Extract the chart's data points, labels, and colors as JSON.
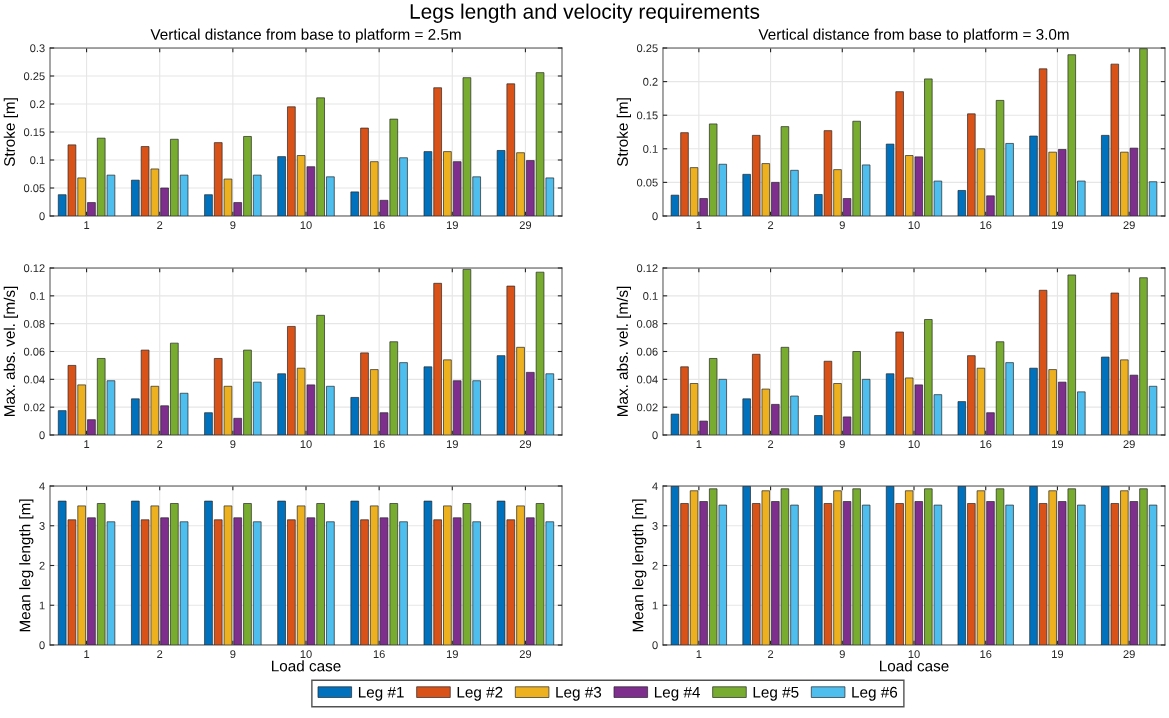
{
  "chart_data": [
    {
      "type": "bar",
      "title": "Legs length and velocity requirements",
      "subtitle": "Vertical distance from base to platform = 2.5m",
      "ylabel": "Stroke [m]",
      "categories": [
        "1",
        "2",
        "9",
        "10",
        "16",
        "19",
        "29"
      ],
      "ylim": [
        0,
        0.3
      ],
      "yticks": [
        0,
        0.05,
        0.1,
        0.15,
        0.2,
        0.25,
        0.3
      ],
      "grid": true,
      "legend": "bottom",
      "series": [
        {
          "name": "Leg #1",
          "color": "#0072bd",
          "values": [
            0.038,
            0.064,
            0.038,
            0.106,
            0.043,
            0.115,
            0.117
          ]
        },
        {
          "name": "Leg #2",
          "color": "#d95319",
          "values": [
            0.127,
            0.124,
            0.131,
            0.195,
            0.157,
            0.229,
            0.236
          ]
        },
        {
          "name": "Leg #3",
          "color": "#edb120",
          "values": [
            0.068,
            0.084,
            0.066,
            0.108,
            0.097,
            0.115,
            0.113
          ]
        },
        {
          "name": "Leg #4",
          "color": "#7e2f8e",
          "values": [
            0.024,
            0.05,
            0.024,
            0.088,
            0.028,
            0.097,
            0.099
          ]
        },
        {
          "name": "Leg #5",
          "color": "#77ac30",
          "values": [
            0.139,
            0.137,
            0.142,
            0.211,
            0.173,
            0.247,
            0.256
          ]
        },
        {
          "name": "Leg #6",
          "color": "#4dbeee",
          "values": [
            0.073,
            0.073,
            0.073,
            0.07,
            0.104,
            0.07,
            0.068
          ]
        }
      ]
    },
    {
      "type": "bar",
      "subtitle": "Vertical distance from base to platform = 3.0m",
      "ylabel": "Stroke [m]",
      "categories": [
        "1",
        "2",
        "9",
        "10",
        "16",
        "19",
        "29"
      ],
      "ylim": [
        0,
        0.25
      ],
      "yticks": [
        0,
        0.05,
        0.1,
        0.15,
        0.2,
        0.25
      ],
      "grid": true,
      "series": [
        {
          "color": "#0072bd",
          "values": [
            0.031,
            0.062,
            0.032,
            0.107,
            0.038,
            0.119,
            0.12
          ]
        },
        {
          "color": "#d95319",
          "values": [
            0.124,
            0.12,
            0.127,
            0.185,
            0.152,
            0.219,
            0.226
          ]
        },
        {
          "color": "#edb120",
          "values": [
            0.072,
            0.078,
            0.069,
            0.09,
            0.1,
            0.095,
            0.095
          ]
        },
        {
          "color": "#7e2f8e",
          "values": [
            0.026,
            0.05,
            0.026,
            0.088,
            0.03,
            0.099,
            0.101
          ]
        },
        {
          "color": "#77ac30",
          "values": [
            0.137,
            0.133,
            0.141,
            0.204,
            0.172,
            0.24,
            0.249
          ]
        },
        {
          "color": "#4dbeee",
          "values": [
            0.077,
            0.068,
            0.076,
            0.052,
            0.108,
            0.052,
            0.051
          ]
        }
      ]
    },
    {
      "type": "bar",
      "ylabel": "Max. abs. vel. [m/s]",
      "categories": [
        "1",
        "2",
        "9",
        "10",
        "16",
        "19",
        "29"
      ],
      "ylim": [
        0,
        0.12
      ],
      "yticks": [
        0,
        0.02,
        0.04,
        0.06,
        0.08,
        0.1,
        0.12
      ],
      "grid": true,
      "series": [
        {
          "color": "#0072bd",
          "values": [
            0.0175,
            0.026,
            0.016,
            0.044,
            0.027,
            0.049,
            0.057
          ]
        },
        {
          "color": "#d95319",
          "values": [
            0.05,
            0.061,
            0.055,
            0.078,
            0.059,
            0.109,
            0.107
          ]
        },
        {
          "color": "#edb120",
          "values": [
            0.036,
            0.035,
            0.035,
            0.048,
            0.047,
            0.054,
            0.063
          ]
        },
        {
          "color": "#7e2f8e",
          "values": [
            0.011,
            0.021,
            0.012,
            0.036,
            0.016,
            0.039,
            0.045
          ]
        },
        {
          "color": "#77ac30",
          "values": [
            0.055,
            0.066,
            0.061,
            0.086,
            0.067,
            0.119,
            0.117
          ]
        },
        {
          "color": "#4dbeee",
          "values": [
            0.039,
            0.03,
            0.038,
            0.035,
            0.052,
            0.039,
            0.044
          ]
        }
      ]
    },
    {
      "type": "bar",
      "ylabel": "Max. abs. vel. [m/s]",
      "categories": [
        "1",
        "2",
        "9",
        "10",
        "16",
        "19",
        "29"
      ],
      "ylim": [
        0,
        0.12
      ],
      "yticks": [
        0,
        0.02,
        0.04,
        0.06,
        0.08,
        0.1,
        0.12
      ],
      "grid": true,
      "series": [
        {
          "color": "#0072bd",
          "values": [
            0.015,
            0.026,
            0.014,
            0.044,
            0.024,
            0.048,
            0.056
          ]
        },
        {
          "color": "#d95319",
          "values": [
            0.049,
            0.058,
            0.053,
            0.074,
            0.057,
            0.104,
            0.102
          ]
        },
        {
          "color": "#edb120",
          "values": [
            0.037,
            0.033,
            0.037,
            0.041,
            0.048,
            0.047,
            0.054
          ]
        },
        {
          "color": "#7e2f8e",
          "values": [
            0.01,
            0.022,
            0.013,
            0.036,
            0.016,
            0.038,
            0.043
          ]
        },
        {
          "color": "#77ac30",
          "values": [
            0.055,
            0.063,
            0.06,
            0.083,
            0.067,
            0.115,
            0.113
          ]
        },
        {
          "color": "#4dbeee",
          "values": [
            0.04,
            0.028,
            0.04,
            0.029,
            0.052,
            0.031,
            0.035
          ]
        }
      ]
    },
    {
      "type": "bar",
      "ylabel": "Mean leg length [m]",
      "xlabel": "Load case",
      "categories": [
        "1",
        "2",
        "9",
        "10",
        "16",
        "19",
        "29"
      ],
      "ylim": [
        0,
        4
      ],
      "yticks": [
        0,
        1,
        2,
        3,
        4
      ],
      "grid": true,
      "series": [
        {
          "color": "#0072bd",
          "values": [
            3.62,
            3.62,
            3.62,
            3.62,
            3.62,
            3.62,
            3.62
          ]
        },
        {
          "color": "#d95319",
          "values": [
            3.15,
            3.15,
            3.15,
            3.15,
            3.15,
            3.15,
            3.15
          ]
        },
        {
          "color": "#edb120",
          "values": [
            3.5,
            3.5,
            3.5,
            3.5,
            3.5,
            3.5,
            3.5
          ]
        },
        {
          "color": "#7e2f8e",
          "values": [
            3.2,
            3.2,
            3.2,
            3.2,
            3.2,
            3.2,
            3.2
          ]
        },
        {
          "color": "#77ac30",
          "values": [
            3.56,
            3.56,
            3.56,
            3.56,
            3.56,
            3.56,
            3.56
          ]
        },
        {
          "color": "#4dbeee",
          "values": [
            3.1,
            3.1,
            3.1,
            3.1,
            3.1,
            3.1,
            3.1
          ]
        }
      ]
    },
    {
      "type": "bar",
      "ylabel": "Mean leg length [m]",
      "xlabel": "Load case",
      "categories": [
        "1",
        "2",
        "9",
        "10",
        "16",
        "19",
        "29"
      ],
      "ylim": [
        0,
        4
      ],
      "yticks": [
        0,
        1,
        2,
        3,
        4
      ],
      "grid": true,
      "series": [
        {
          "color": "#0072bd",
          "values": [
            3.99,
            3.99,
            3.99,
            3.99,
            3.99,
            3.99,
            3.99
          ]
        },
        {
          "color": "#d95319",
          "values": [
            3.56,
            3.56,
            3.56,
            3.56,
            3.56,
            3.56,
            3.56
          ]
        },
        {
          "color": "#edb120",
          "values": [
            3.88,
            3.88,
            3.88,
            3.88,
            3.88,
            3.88,
            3.88
          ]
        },
        {
          "color": "#7e2f8e",
          "values": [
            3.61,
            3.61,
            3.61,
            3.61,
            3.61,
            3.61,
            3.61
          ]
        },
        {
          "color": "#77ac30",
          "values": [
            3.93,
            3.93,
            3.93,
            3.93,
            3.93,
            3.93,
            3.93
          ]
        },
        {
          "color": "#4dbeee",
          "values": [
            3.52,
            3.52,
            3.52,
            3.52,
            3.52,
            3.52,
            3.52
          ]
        }
      ]
    }
  ]
}
